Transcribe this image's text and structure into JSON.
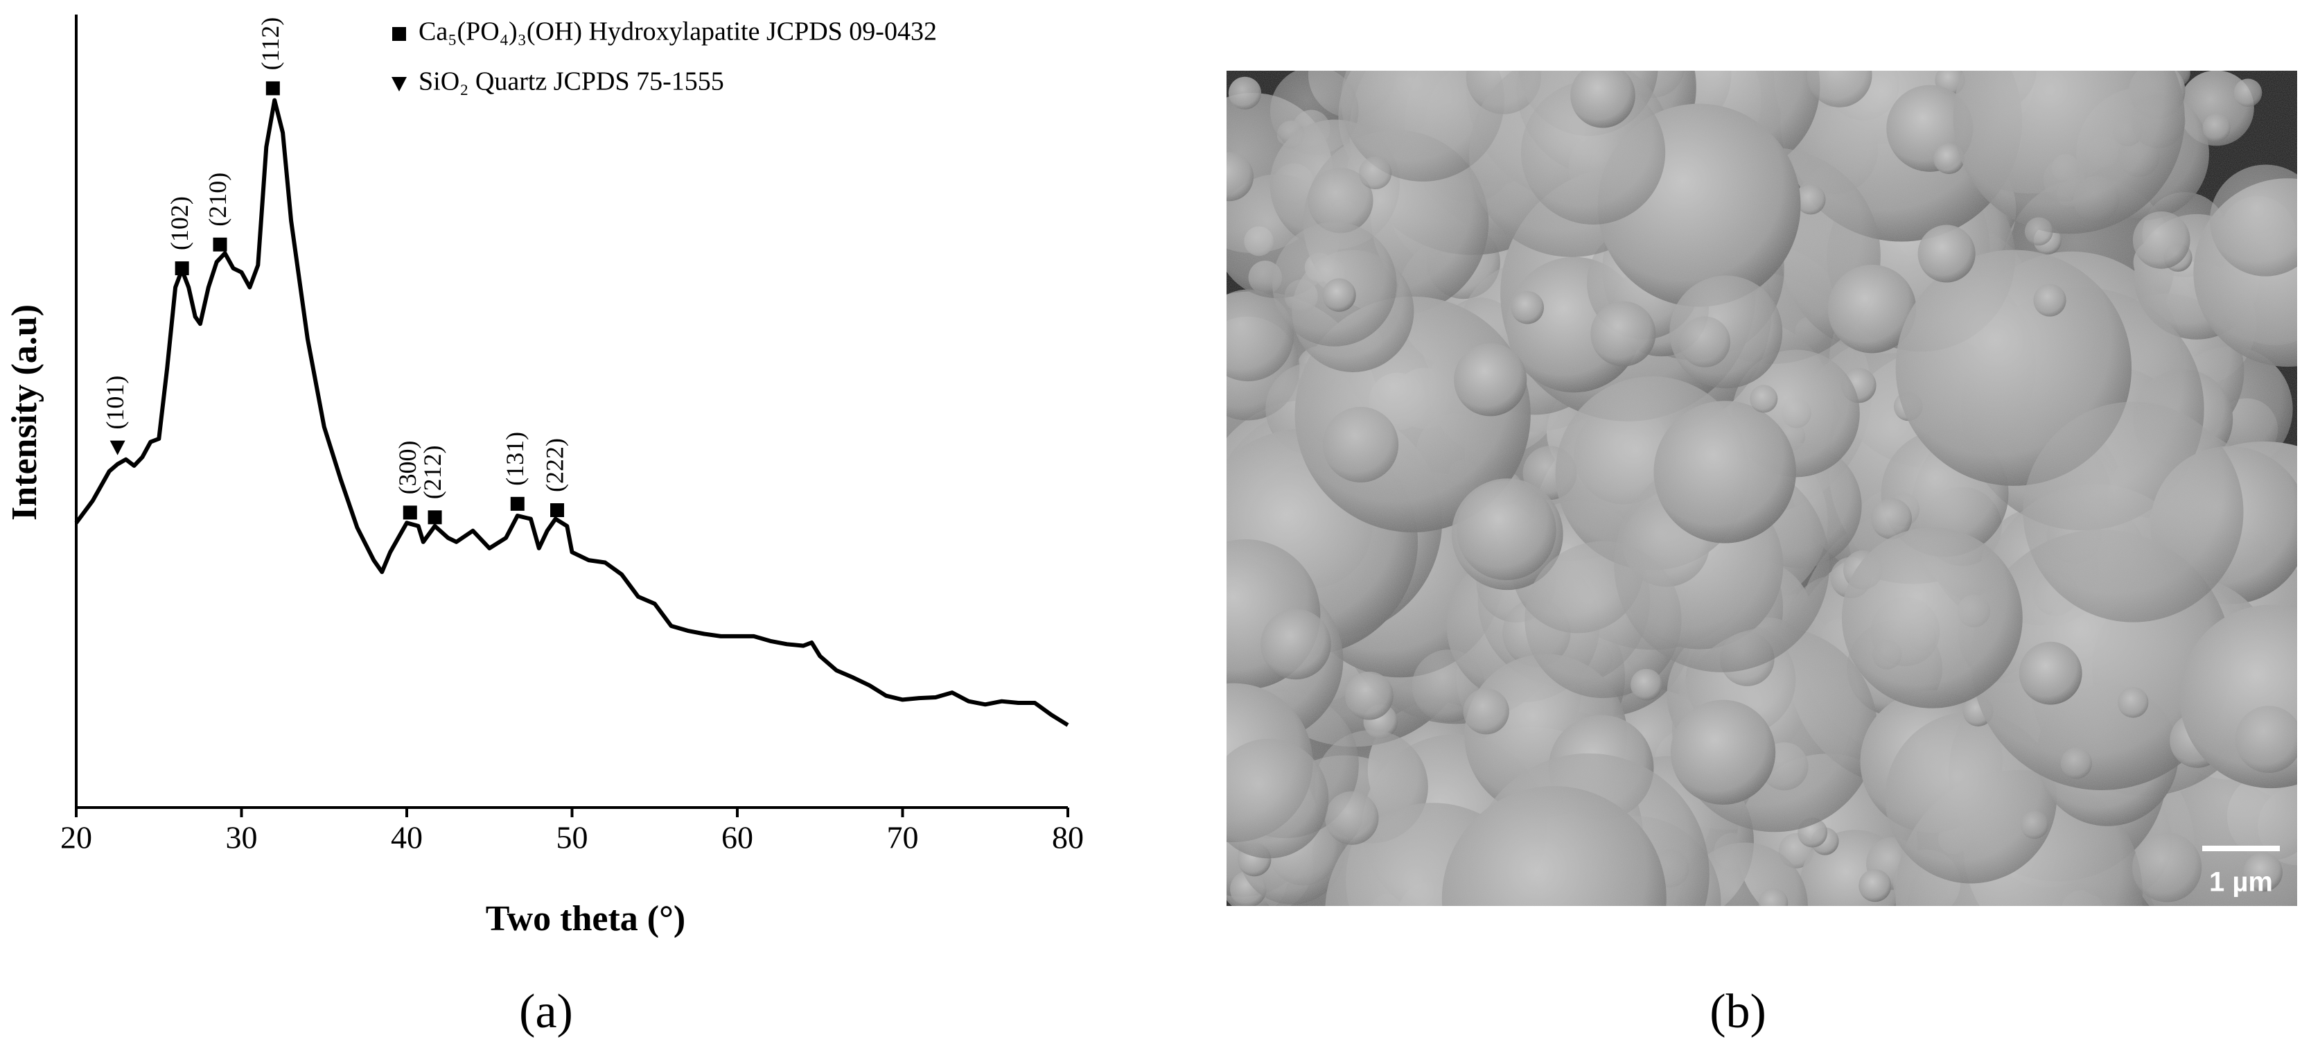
{
  "chart_data": {
    "type": "line",
    "xlabel": "Two theta (°)",
    "ylabel": "Intensity (a.u)",
    "xlim": [
      20,
      80
    ],
    "xticks": [
      20,
      30,
      40,
      50,
      60,
      70,
      80
    ],
    "ylim": [
      0,
      100
    ],
    "color": "#000000",
    "x": [
      20,
      21,
      22,
      22.5,
      23,
      23.5,
      24,
      24.5,
      25,
      25.5,
      26,
      26.4,
      26.8,
      27.2,
      27.5,
      28,
      28.5,
      29,
      29.5,
      30,
      30.5,
      31,
      31.5,
      32,
      32.5,
      33,
      34,
      35,
      36,
      37,
      38,
      38.5,
      39,
      40,
      40.7,
      41,
      41.7,
      42.5,
      43,
      44,
      45,
      46,
      46.7,
      47.5,
      48,
      48.5,
      49,
      49.7,
      50,
      51,
      52,
      53,
      54,
      55,
      56,
      57,
      58,
      59,
      60,
      61,
      62,
      63,
      64,
      64.5,
      65,
      66,
      67,
      68,
      69,
      70,
      71,
      72,
      73,
      74,
      75,
      76,
      77,
      78,
      79,
      80
    ],
    "values": [
      35.9,
      38.7,
      42.4,
      43.3,
      43.9,
      43.1,
      44.2,
      46.1,
      46.5,
      55.4,
      65.6,
      67.8,
      65.6,
      61.9,
      61.0,
      65.6,
      68.8,
      69.9,
      68.0,
      67.5,
      65.6,
      68.4,
      83.3,
      89.2,
      85.1,
      74.0,
      59.1,
      48.0,
      41.4,
      35.3,
      31.2,
      29.7,
      32.2,
      35.9,
      35.5,
      33.5,
      35.5,
      34.0,
      33.5,
      34.9,
      32.7,
      34.0,
      36.8,
      36.4,
      32.7,
      34.9,
      36.4,
      35.5,
      32.2,
      31.2,
      30.9,
      29.4,
      26.6,
      25.7,
      22.9,
      22.3,
      21.9,
      21.6,
      21.6,
      21.6,
      21.0,
      20.6,
      20.4,
      20.8,
      19.1,
      17.3,
      16.4,
      15.4,
      14.1,
      13.6,
      13.8,
      13.9,
      14.5,
      13.4,
      13.0,
      13.4,
      13.2,
      13.2,
      11.7,
      10.4
    ],
    "legend_entries": [
      {
        "marker": "square",
        "label": "Ca₅(PO₄)₃(OH) Hydroxylapatite JCPDS 09-0432"
      },
      {
        "marker": "triangle",
        "label": "SiO₂ Quartz JCPDS 75-1555"
      }
    ],
    "annotations": [
      {
        "label": "(101)",
        "x": 22.5,
        "y": 45.4,
        "marker": "triangle"
      },
      {
        "label": "(102)",
        "x": 26.4,
        "y": 68.0,
        "marker": "square"
      },
      {
        "label": "(210)",
        "x": 28.7,
        "y": 71.0,
        "marker": "square"
      },
      {
        "label": "(112)",
        "x": 31.9,
        "y": 90.7,
        "marker": "square"
      },
      {
        "label": "(300)",
        "x": 40.2,
        "y": 37.2,
        "marker": "square"
      },
      {
        "label": "(212)",
        "x": 41.7,
        "y": 36.6,
        "marker": "square"
      },
      {
        "label": "(131)",
        "x": 46.7,
        "y": 38.3,
        "marker": "square"
      },
      {
        "label": "(222)",
        "x": 49.1,
        "y": 37.5,
        "marker": "square"
      }
    ]
  },
  "panels": {
    "a_label": "(a)",
    "b_label": "(b)",
    "scale_bar": "1 µm"
  }
}
